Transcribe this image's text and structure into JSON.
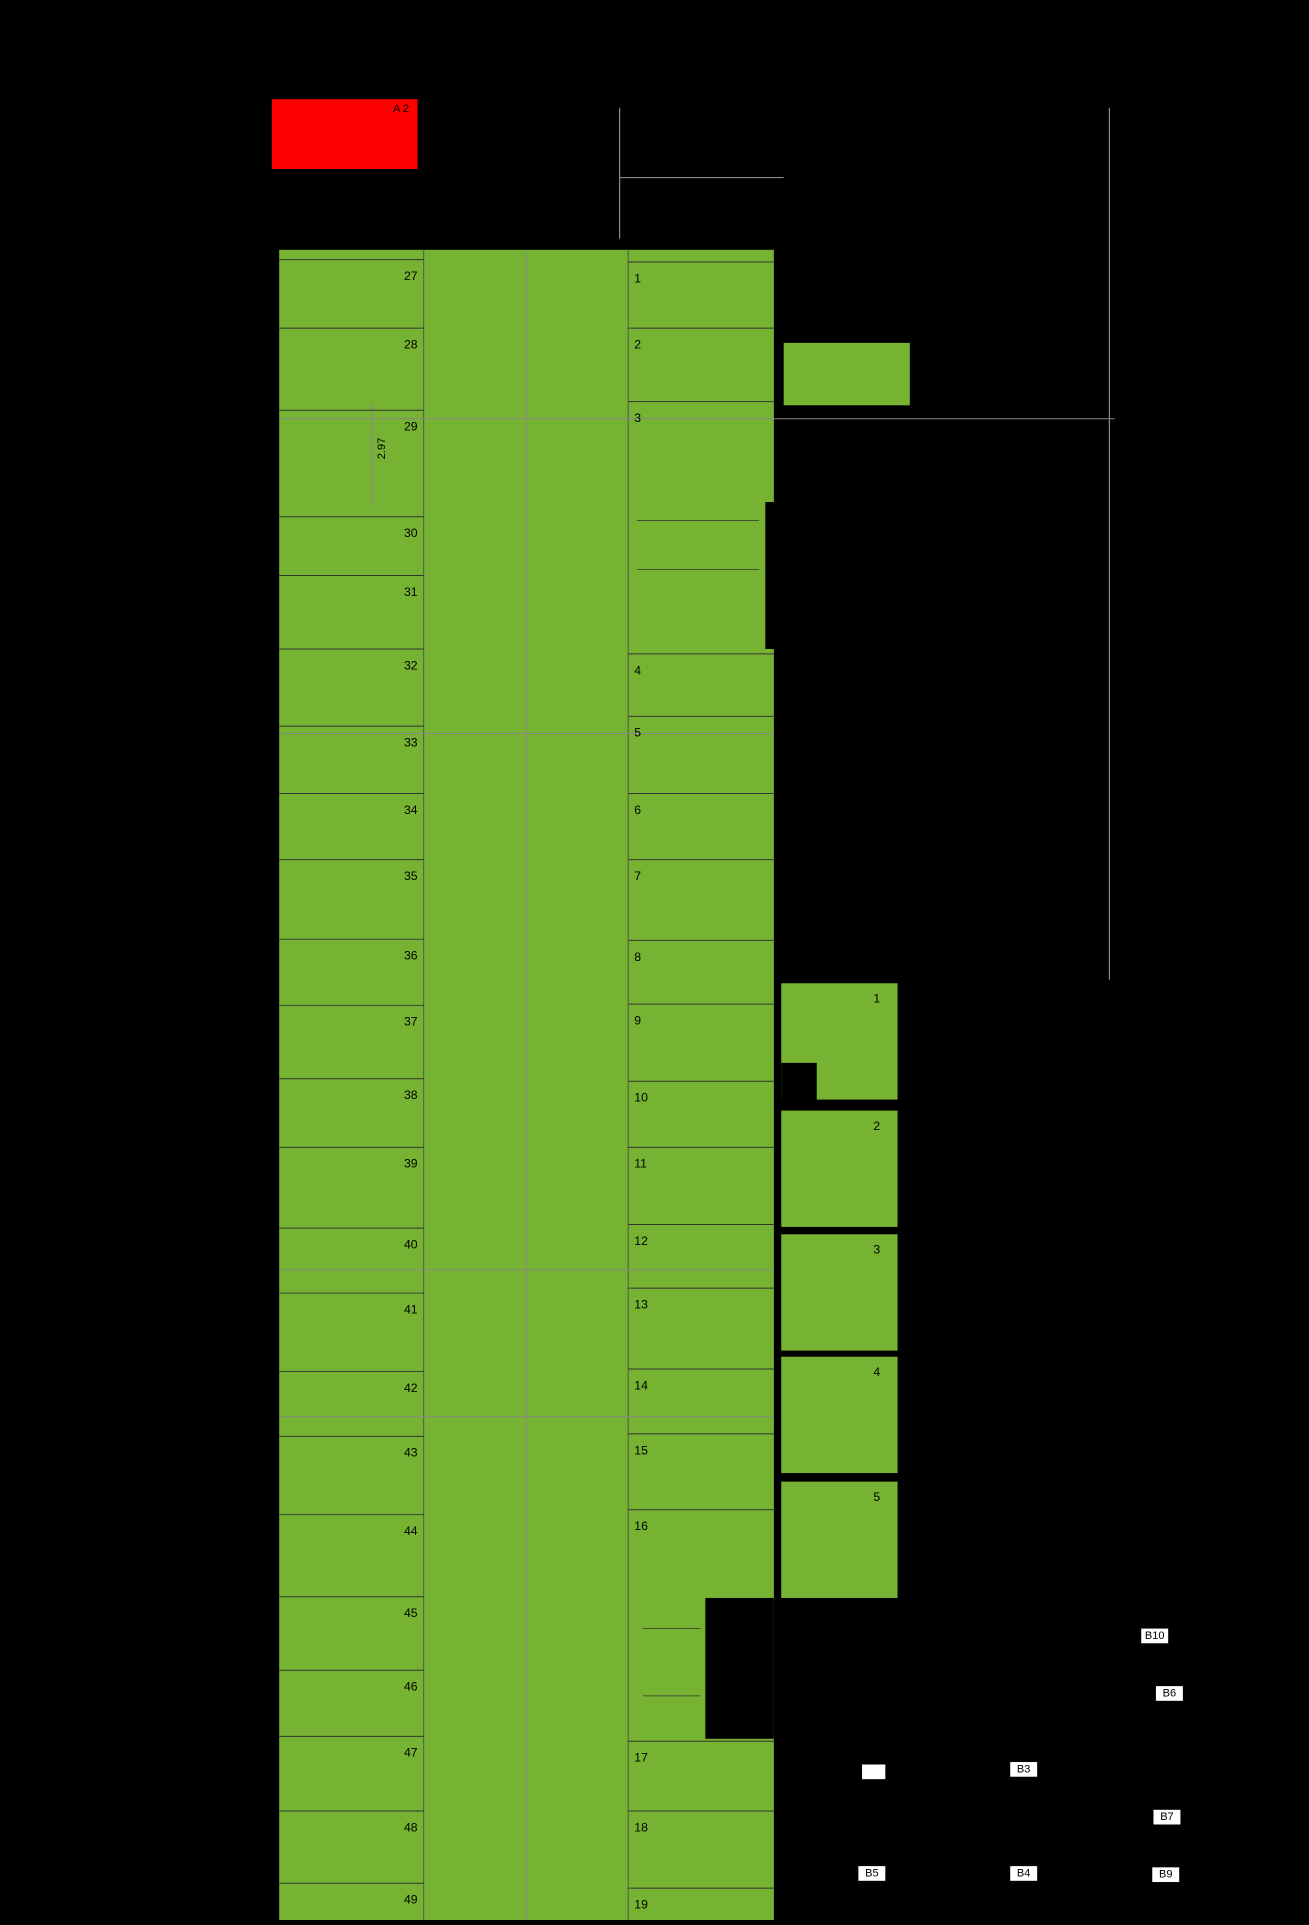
{
  "header": {
    "label": "A 2"
  },
  "parking_left": [
    "27",
    "28",
    "29",
    "30",
    "31",
    "32",
    "33",
    "34",
    "35",
    "36",
    "37",
    "38",
    "39",
    "40",
    "41",
    "42",
    "43",
    "44",
    "45",
    "46",
    "47",
    "48",
    "49"
  ],
  "parking_right": [
    "1",
    "2",
    "3",
    "4",
    "5",
    "6",
    "7",
    "8",
    "9",
    "10",
    "11",
    "12",
    "13",
    "14",
    "15",
    "16",
    "17",
    "18",
    "19"
  ],
  "storage": [
    "1",
    "2",
    "3",
    "4",
    "5"
  ],
  "dimension": "2.97",
  "blocks": [
    "B10",
    "B6",
    "B3",
    "B7",
    "B5",
    "B4",
    "B9"
  ]
}
